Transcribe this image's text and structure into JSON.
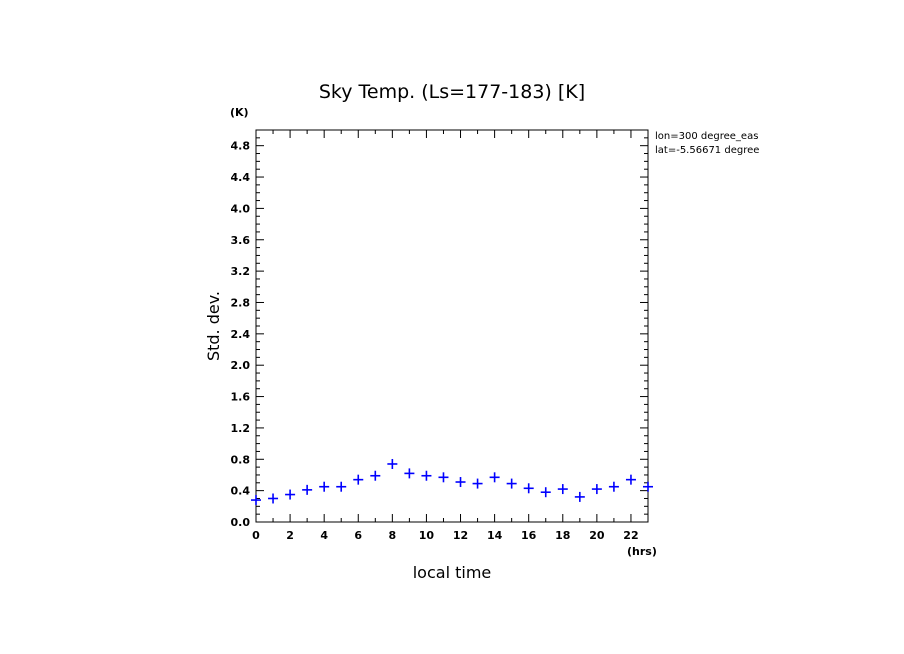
{
  "chart_data": {
    "type": "scatter",
    "title": "Sky Temp. (Ls=177-183) [K]",
    "xlabel": "local time",
    "ylabel": "Std. dev.",
    "x_unit": "(hrs)",
    "y_unit": "(K)",
    "xlim": [
      0,
      23
    ],
    "ylim": [
      0,
      5.0
    ],
    "x_ticks": [
      "0",
      "2",
      "4",
      "6",
      "8",
      "10",
      "12",
      "14",
      "16",
      "18",
      "20",
      "22"
    ],
    "y_ticks": [
      "0.0",
      "0.4",
      "0.8",
      "1.2",
      "1.6",
      "2.0",
      "2.4",
      "2.8",
      "3.2",
      "3.6",
      "4.0",
      "4.4",
      "4.8"
    ],
    "annotations": [
      "lon=300 degree_eas",
      "lat=-5.56671 degree"
    ],
    "marker_color": "#0000ff",
    "series": [
      {
        "x": [
          0,
          1,
          2,
          3,
          4,
          5,
          6,
          7,
          8,
          9,
          10,
          11,
          12,
          13,
          14,
          15,
          16,
          17,
          18,
          19,
          20,
          21,
          22,
          23
        ],
        "values": [
          0.28,
          0.3,
          0.35,
          0.41,
          0.45,
          0.45,
          0.54,
          0.59,
          0.74,
          0.62,
          0.59,
          0.57,
          0.51,
          0.49,
          0.57,
          0.49,
          0.43,
          0.38,
          0.42,
          0.32,
          0.42,
          0.45,
          0.54,
          0.45
        ]
      }
    ]
  }
}
